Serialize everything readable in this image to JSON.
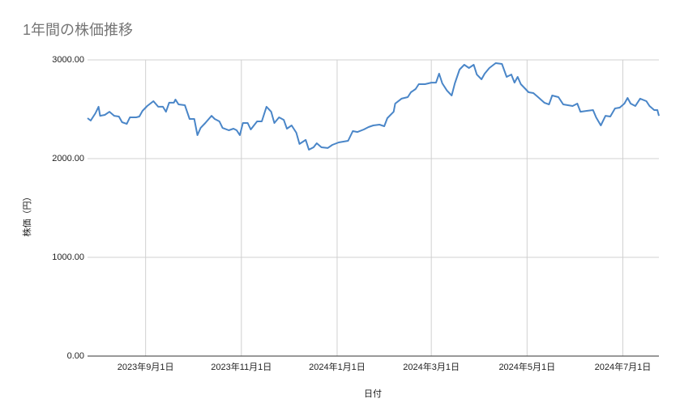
{
  "chart_data": {
    "type": "line",
    "title": "1年間の株価推移",
    "x_label": "日付",
    "y_label": "株価（円）",
    "xlim": [
      "2023-07-26",
      "2024-07-24"
    ],
    "ylim": [
      0,
      3000
    ],
    "xticks": [
      {
        "value": "2023-09-01",
        "label": "2023年9月1日"
      },
      {
        "value": "2023-11-01",
        "label": "2023年11月1日"
      },
      {
        "value": "2024-01-01",
        "label": "2024年1月1日"
      },
      {
        "value": "2024-03-01",
        "label": "2024年3月1日"
      },
      {
        "value": "2024-05-01",
        "label": "2024年5月1日"
      },
      {
        "value": "2024-07-01",
        "label": "2024年7月1日"
      }
    ],
    "yticks": [
      {
        "value": 0,
        "label": "0.00"
      },
      {
        "value": 1000,
        "label": "1000.00"
      },
      {
        "value": 2000,
        "label": "2000.00"
      },
      {
        "value": 3000,
        "label": "3000.00"
      }
    ],
    "grid": true,
    "x": [
      "2023-07-26",
      "2023-07-28",
      "2023-07-31",
      "2023-08-02",
      "2023-08-03",
      "2023-08-06",
      "2023-08-09",
      "2023-08-12",
      "2023-08-15",
      "2023-08-17",
      "2023-08-20",
      "2023-08-22",
      "2023-08-26",
      "2023-08-28",
      "2023-08-30",
      "2023-09-02",
      "2023-09-06",
      "2023-09-09",
      "2023-09-12",
      "2023-09-14",
      "2023-09-16",
      "2023-09-19",
      "2023-09-20",
      "2023-09-22",
      "2023-09-26",
      "2023-09-29",
      "2023-10-02",
      "2023-10-04",
      "2023-10-06",
      "2023-10-09",
      "2023-10-13",
      "2023-10-15",
      "2023-10-18",
      "2023-10-20",
      "2023-10-24",
      "2023-10-27",
      "2023-10-29",
      "2023-10-31",
      "2023-11-02",
      "2023-11-05",
      "2023-11-07",
      "2023-11-11",
      "2023-11-14",
      "2023-11-17",
      "2023-11-20",
      "2023-11-22",
      "2023-11-25",
      "2023-11-28",
      "2023-11-30",
      "2023-12-03",
      "2023-12-06",
      "2023-12-08",
      "2023-12-12",
      "2023-12-14",
      "2023-12-17",
      "2023-12-19",
      "2023-12-22",
      "2023-12-26",
      "2023-12-29",
      "2024-01-02",
      "2024-01-08",
      "2024-01-11",
      "2024-01-14",
      "2024-01-18",
      "2024-01-21",
      "2024-01-24",
      "2024-01-28",
      "2024-01-31",
      "2024-02-02",
      "2024-02-06",
      "2024-02-07",
      "2024-02-11",
      "2024-02-15",
      "2024-02-17",
      "2024-02-20",
      "2024-02-22",
      "2024-02-26",
      "2024-03-01",
      "2024-03-04",
      "2024-03-06",
      "2024-03-08",
      "2024-03-11",
      "2024-03-14",
      "2024-03-16",
      "2024-03-19",
      "2024-03-22",
      "2024-03-25",
      "2024-03-28",
      "2024-03-30",
      "2024-04-02",
      "2024-04-04",
      "2024-04-07",
      "2024-04-11",
      "2024-04-15",
      "2024-04-18",
      "2024-04-21",
      "2024-04-23",
      "2024-04-25",
      "2024-04-27",
      "2024-04-30",
      "2024-05-02",
      "2024-05-05",
      "2024-05-08",
      "2024-05-12",
      "2024-05-15",
      "2024-05-17",
      "2024-05-21",
      "2024-05-24",
      "2024-05-27",
      "2024-05-30",
      "2024-06-02",
      "2024-06-04",
      "2024-06-08",
      "2024-06-12",
      "2024-06-14",
      "2024-06-17",
      "2024-06-20",
      "2024-06-23",
      "2024-06-26",
      "2024-06-29",
      "2024-07-02",
      "2024-07-04",
      "2024-07-06",
      "2024-07-09",
      "2024-07-12",
      "2024-07-16",
      "2024-07-18",
      "2024-07-21",
      "2024-07-23",
      "2024-07-24"
    ],
    "series": [
      {
        "name": "株価",
        "color": "#4a86c8",
        "values": [
          2410,
          2385,
          2459,
          2525,
          2434,
          2443,
          2475,
          2434,
          2426,
          2369,
          2352,
          2418,
          2418,
          2426,
          2484,
          2533,
          2582,
          2525,
          2525,
          2475,
          2566,
          2566,
          2598,
          2549,
          2541,
          2402,
          2402,
          2238,
          2311,
          2361,
          2434,
          2402,
          2377,
          2311,
          2287,
          2303,
          2287,
          2238,
          2361,
          2361,
          2295,
          2377,
          2377,
          2525,
          2475,
          2361,
          2418,
          2393,
          2303,
          2336,
          2262,
          2148,
          2189,
          2090,
          2115,
          2156,
          2115,
          2107,
          2139,
          2164,
          2180,
          2279,
          2270,
          2295,
          2320,
          2336,
          2344,
          2328,
          2410,
          2475,
          2557,
          2607,
          2623,
          2672,
          2705,
          2754,
          2754,
          2770,
          2770,
          2861,
          2762,
          2689,
          2639,
          2762,
          2902,
          2951,
          2918,
          2951,
          2852,
          2803,
          2861,
          2918,
          2967,
          2959,
          2828,
          2852,
          2770,
          2828,
          2754,
          2705,
          2672,
          2664,
          2623,
          2566,
          2549,
          2639,
          2623,
          2549,
          2541,
          2533,
          2557,
          2475,
          2484,
          2492,
          2418,
          2336,
          2434,
          2426,
          2508,
          2516,
          2557,
          2615,
          2557,
          2533,
          2607,
          2582,
          2533,
          2492,
          2492,
          2434
        ]
      }
    ]
  }
}
